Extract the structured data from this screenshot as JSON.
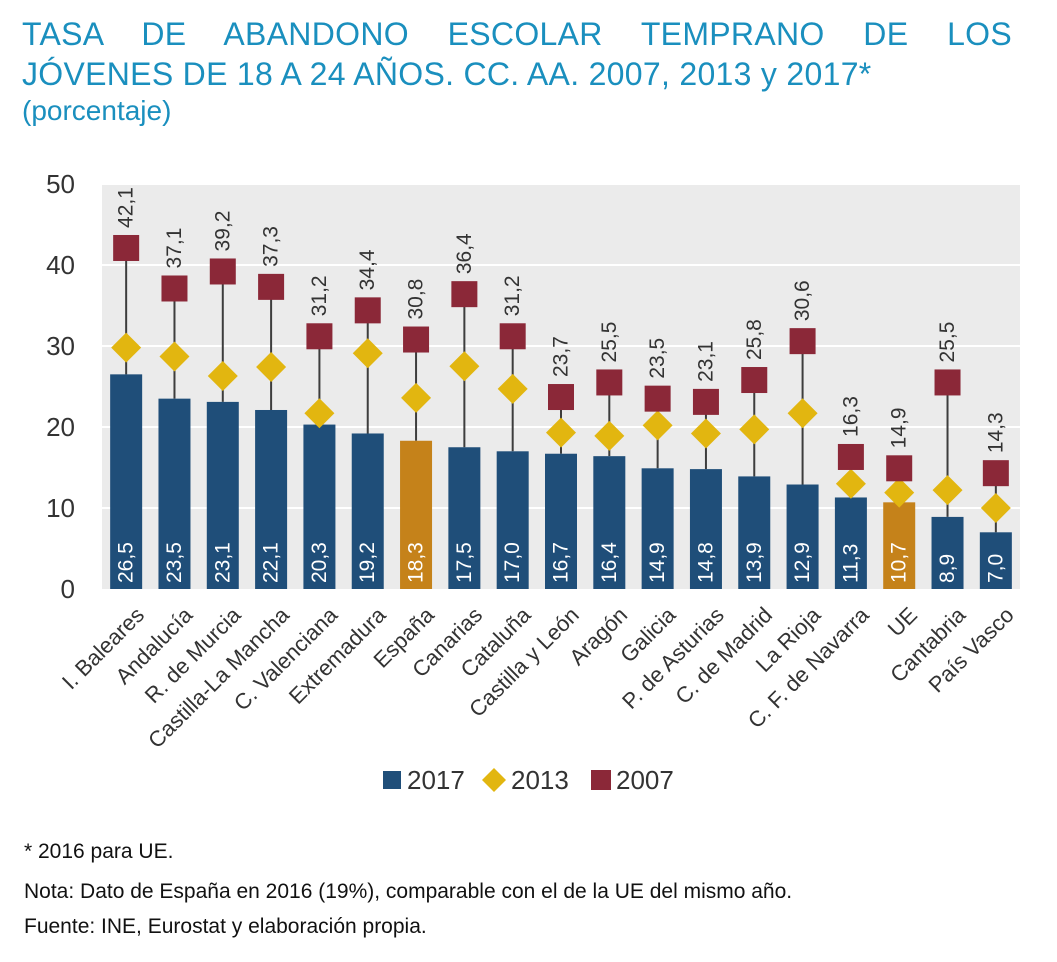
{
  "title": {
    "line1": "TASA DE ABANDONO ESCOLAR TEMPRANO DE LOS",
    "line2": "JÓVENES DE 18 A 24 AÑOS. CC. AA. 2007, 2013 y 2017*",
    "line3": "(porcentaje)"
  },
  "colors": {
    "bar_2017": "#1f4e79",
    "bar_highlight": "#c5821a",
    "marker_2013": "#e2b610",
    "marker_2007": "#8b2838",
    "title": "#1a8fbe",
    "plot_bg": "#ebebeb"
  },
  "chart_data": {
    "type": "bar",
    "ylim": [
      0,
      50
    ],
    "yticks": [
      "0",
      "10",
      "20",
      "30",
      "40",
      "50"
    ],
    "grid": true,
    "legend_position": "bottom",
    "highlight_categories": [
      "España",
      "UE"
    ],
    "categories": [
      "I. Baleares",
      "Andalucía",
      "R. de Murcia",
      "Castilla-La Mancha",
      "C. Valenciana",
      "Extremadura",
      "España",
      "Canarias",
      "Cataluña",
      "Castilla y León",
      "Aragón",
      "Galicia",
      "P. de Asturias",
      "C. de Madrid",
      "La Rioja",
      "C. F. de Navarra",
      "UE",
      "Cantabria",
      "País Vasco"
    ],
    "series": [
      {
        "name": "2017",
        "marker": "bar",
        "values": [
          26.5,
          23.5,
          23.1,
          22.1,
          20.3,
          19.2,
          18.3,
          17.5,
          17.0,
          16.7,
          16.4,
          14.9,
          14.8,
          13.9,
          12.9,
          11.3,
          10.7,
          8.9,
          7.0
        ],
        "labels": [
          "26,5",
          "23,5",
          "23,1",
          "22,1",
          "20,3",
          "19,2",
          "18,3",
          "17,5",
          "17,0",
          "16,7",
          "16,4",
          "14,9",
          "14,8",
          "13,9",
          "12,9",
          "11,3",
          "10,7",
          "8,9",
          "7,0"
        ]
      },
      {
        "name": "2013",
        "marker": "diamond",
        "values": [
          29.8,
          28.7,
          26.3,
          27.4,
          21.7,
          29.1,
          23.6,
          27.5,
          24.7,
          19.3,
          18.9,
          20.2,
          19.2,
          19.7,
          21.7,
          13.0,
          11.9,
          12.2,
          10.0
        ]
      },
      {
        "name": "2007",
        "marker": "square",
        "values": [
          42.1,
          37.1,
          39.2,
          37.3,
          31.2,
          34.4,
          30.8,
          36.4,
          31.2,
          23.7,
          25.5,
          23.5,
          23.1,
          25.8,
          30.6,
          16.3,
          14.9,
          25.5,
          14.3
        ],
        "labels": [
          "42,1",
          "37,1",
          "39,2",
          "37,3",
          "31,2",
          "34,4",
          "30,8",
          "36,4",
          "31,2",
          "23,7",
          "25,5",
          "23,5",
          "23,1",
          "25,8",
          "30,6",
          "16,3",
          "14,9",
          "25,5",
          "14,3"
        ]
      }
    ]
  },
  "notes": {
    "footnote": "* 2016 para UE.",
    "nota": "Nota: Dato de España en 2016 (19%), comparable con el de la UE del mismo año.",
    "fuente": "Fuente: INE, Eurostat  y elaboración propia."
  }
}
